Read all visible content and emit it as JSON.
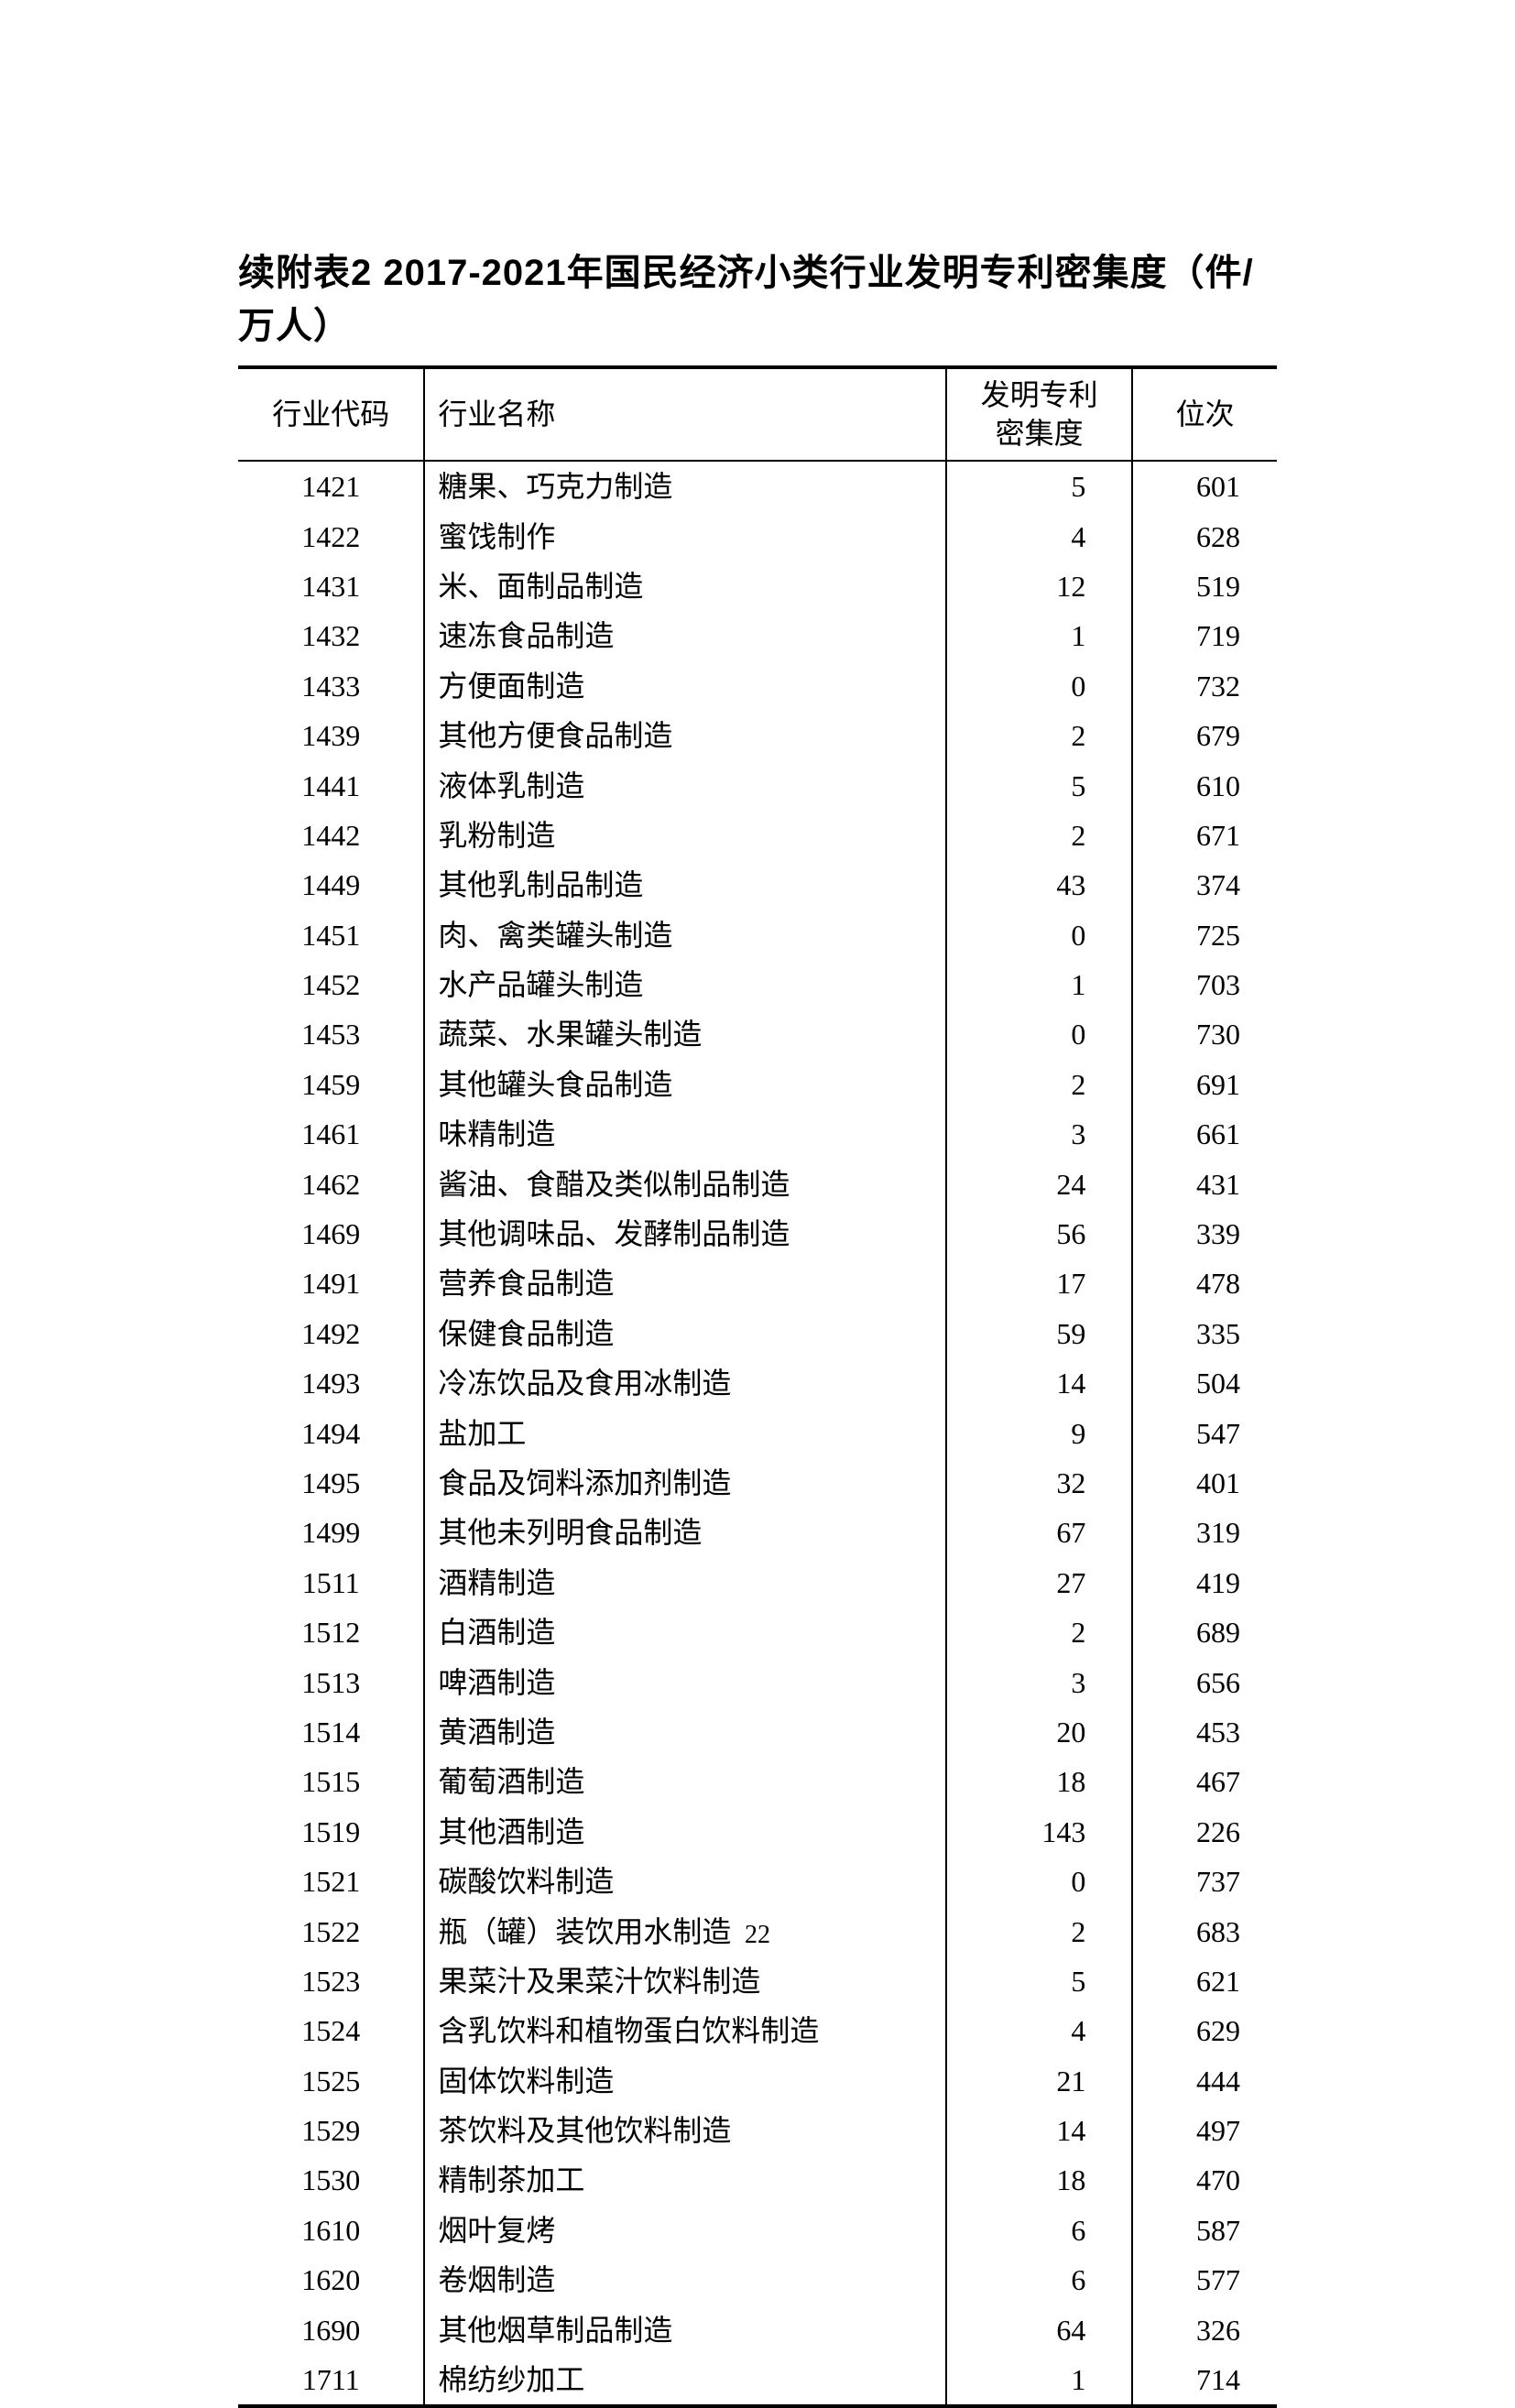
{
  "title": "续附表2  2017-2021年国民经济小类行业发明专利密集度（件/万人）",
  "headers": {
    "code": "行业代码",
    "name": "行业名称",
    "density_line1": "发明专利",
    "density_line2": "密集度",
    "rank": "位次"
  },
  "rows": [
    {
      "code": "1421",
      "name": "糖果、巧克力制造",
      "density": "5",
      "rank": "601"
    },
    {
      "code": "1422",
      "name": "蜜饯制作",
      "density": "4",
      "rank": "628"
    },
    {
      "code": "1431",
      "name": "米、面制品制造",
      "density": "12",
      "rank": "519"
    },
    {
      "code": "1432",
      "name": "速冻食品制造",
      "density": "1",
      "rank": "719"
    },
    {
      "code": "1433",
      "name": "方便面制造",
      "density": "0",
      "rank": "732"
    },
    {
      "code": "1439",
      "name": "其他方便食品制造",
      "density": "2",
      "rank": "679"
    },
    {
      "code": "1441",
      "name": "液体乳制造",
      "density": "5",
      "rank": "610"
    },
    {
      "code": "1442",
      "name": "乳粉制造",
      "density": "2",
      "rank": "671"
    },
    {
      "code": "1449",
      "name": "其他乳制品制造",
      "density": "43",
      "rank": "374"
    },
    {
      "code": "1451",
      "name": "肉、禽类罐头制造",
      "density": "0",
      "rank": "725"
    },
    {
      "code": "1452",
      "name": "水产品罐头制造",
      "density": "1",
      "rank": "703"
    },
    {
      "code": "1453",
      "name": "蔬菜、水果罐头制造",
      "density": "0",
      "rank": "730"
    },
    {
      "code": "1459",
      "name": "其他罐头食品制造",
      "density": "2",
      "rank": "691"
    },
    {
      "code": "1461",
      "name": "味精制造",
      "density": "3",
      "rank": "661"
    },
    {
      "code": "1462",
      "name": "酱油、食醋及类似制品制造",
      "density": "24",
      "rank": "431"
    },
    {
      "code": "1469",
      "name": "其他调味品、发酵制品制造",
      "density": "56",
      "rank": "339"
    },
    {
      "code": "1491",
      "name": "营养食品制造",
      "density": "17",
      "rank": "478"
    },
    {
      "code": "1492",
      "name": "保健食品制造",
      "density": "59",
      "rank": "335"
    },
    {
      "code": "1493",
      "name": "冷冻饮品及食用冰制造",
      "density": "14",
      "rank": "504"
    },
    {
      "code": "1494",
      "name": "盐加工",
      "density": "9",
      "rank": "547"
    },
    {
      "code": "1495",
      "name": "食品及饲料添加剂制造",
      "density": "32",
      "rank": "401"
    },
    {
      "code": "1499",
      "name": "其他未列明食品制造",
      "density": "67",
      "rank": "319"
    },
    {
      "code": "1511",
      "name": "酒精制造",
      "density": "27",
      "rank": "419"
    },
    {
      "code": "1512",
      "name": "白酒制造",
      "density": "2",
      "rank": "689"
    },
    {
      "code": "1513",
      "name": "啤酒制造",
      "density": "3",
      "rank": "656"
    },
    {
      "code": "1514",
      "name": "黄酒制造",
      "density": "20",
      "rank": "453"
    },
    {
      "code": "1515",
      "name": "葡萄酒制造",
      "density": "18",
      "rank": "467"
    },
    {
      "code": "1519",
      "name": "其他酒制造",
      "density": "143",
      "rank": "226"
    },
    {
      "code": "1521",
      "name": "碳酸饮料制造",
      "density": "0",
      "rank": "737"
    },
    {
      "code": "1522",
      "name": "瓶（罐）装饮用水制造",
      "density": "2",
      "rank": "683"
    },
    {
      "code": "1523",
      "name": "果菜汁及果菜汁饮料制造",
      "density": "5",
      "rank": "621"
    },
    {
      "code": "1524",
      "name": "含乳饮料和植物蛋白饮料制造",
      "density": "4",
      "rank": "629"
    },
    {
      "code": "1525",
      "name": "固体饮料制造",
      "density": "21",
      "rank": "444"
    },
    {
      "code": "1529",
      "name": "茶饮料及其他饮料制造",
      "density": "14",
      "rank": "497"
    },
    {
      "code": "1530",
      "name": "精制茶加工",
      "density": "18",
      "rank": "470"
    },
    {
      "code": "1610",
      "name": "烟叶复烤",
      "density": "6",
      "rank": "587"
    },
    {
      "code": "1620",
      "name": "卷烟制造",
      "density": "6",
      "rank": "577"
    },
    {
      "code": "1690",
      "name": "其他烟草制品制造",
      "density": "64",
      "rank": "326"
    },
    {
      "code": "1711",
      "name": "棉纺纱加工",
      "density": "1",
      "rank": "714"
    }
  ],
  "pageNumber": "22"
}
